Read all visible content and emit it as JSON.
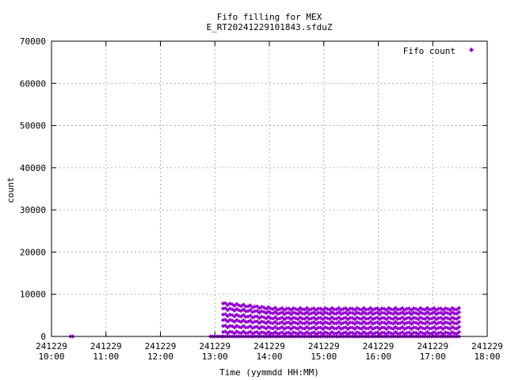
{
  "chart_data": {
    "type": "scatter",
    "title_line1": "Fifo filling for MEX",
    "title_line2": "E_RT20241229101843.sfduZ",
    "xlabel": "Time (yymmdd HH:MM)",
    "ylabel": "count",
    "xlim": [
      "241229 10:00",
      "241229 18:00"
    ],
    "ylim": [
      0,
      70000
    ],
    "grid": true,
    "legend_position": "top-right",
    "y_ticks": [
      "0",
      "10000",
      "20000",
      "30000",
      "40000",
      "50000",
      "60000",
      "70000"
    ],
    "x_ticks": [
      {
        "date": "241229",
        "time": "10:00"
      },
      {
        "date": "241229",
        "time": "11:00"
      },
      {
        "date": "241229",
        "time": "12:00"
      },
      {
        "date": "241229",
        "time": "13:00"
      },
      {
        "date": "241229",
        "time": "14:00"
      },
      {
        "date": "241229",
        "time": "15:00"
      },
      {
        "date": "241229",
        "time": "16:00"
      },
      {
        "date": "241229",
        "time": "17:00"
      },
      {
        "date": "241229",
        "time": "18:00"
      }
    ],
    "series": [
      {
        "name": "Fifo count",
        "color": "#9400d3",
        "marker": "diamond",
        "segments": [
          {
            "start": "241229 10:21",
            "end": "241229 10:24",
            "levels": [
              0
            ]
          },
          {
            "start": "241229 12:55",
            "end": "241229 13:09",
            "levels": [
              0
            ]
          },
          {
            "start": "241229 13:09",
            "end": "241229 17:30",
            "levels": [
              0,
              800,
              2000,
              3200,
              4300,
              5500,
              6500
            ]
          }
        ]
      }
    ]
  }
}
